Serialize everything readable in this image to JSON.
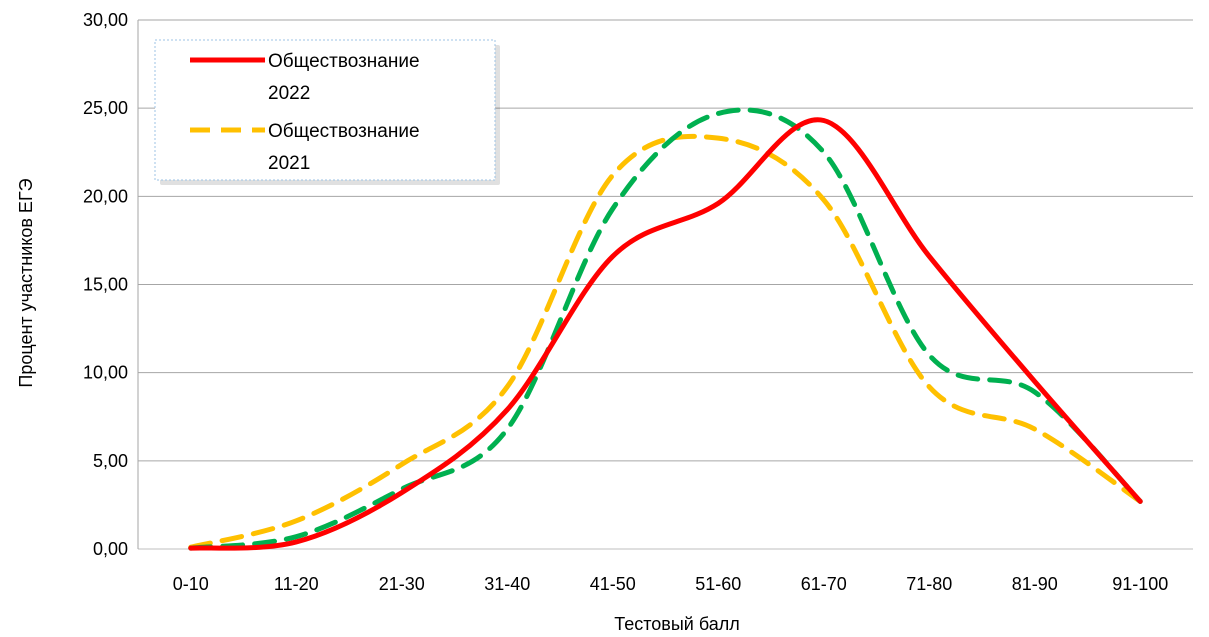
{
  "chart_data": {
    "type": "line",
    "title": "",
    "xlabel": "Тестовый балл",
    "ylabel": "Процент участников ЕГЭ",
    "categories": [
      "0-10",
      "11-20",
      "21-30",
      "31-40",
      "41-50",
      "51-60",
      "61-70",
      "71-80",
      "81-90",
      "91-100"
    ],
    "ylim": [
      0,
      30
    ],
    "yticks": [
      "0,00",
      "5,00",
      "10,00",
      "15,00",
      "20,00",
      "25,00",
      "30,00"
    ],
    "grid": true,
    "legend_position": "top-left",
    "series": [
      {
        "name": "Обществознание 2022",
        "values": [
          0.05,
          0.4,
          3.2,
          7.9,
          16.6,
          19.6,
          24.3,
          16.6,
          9.5,
          2.7
        ],
        "color": "#ff0000",
        "style": "solid"
      },
      {
        "name": "Обществознание 2021",
        "values": [
          0.1,
          1.6,
          4.8,
          9.2,
          21.2,
          23.3,
          19.8,
          9.2,
          6.8,
          2.7
        ],
        "color": "#ffc000",
        "style": "dashed"
      },
      {
        "name": "",
        "values": [
          0.05,
          0.7,
          3.4,
          6.8,
          19.3,
          24.7,
          22.5,
          11.0,
          8.9,
          2.7
        ],
        "color": "#00b050",
        "style": "dashed",
        "in_legend": false
      }
    ]
  }
}
